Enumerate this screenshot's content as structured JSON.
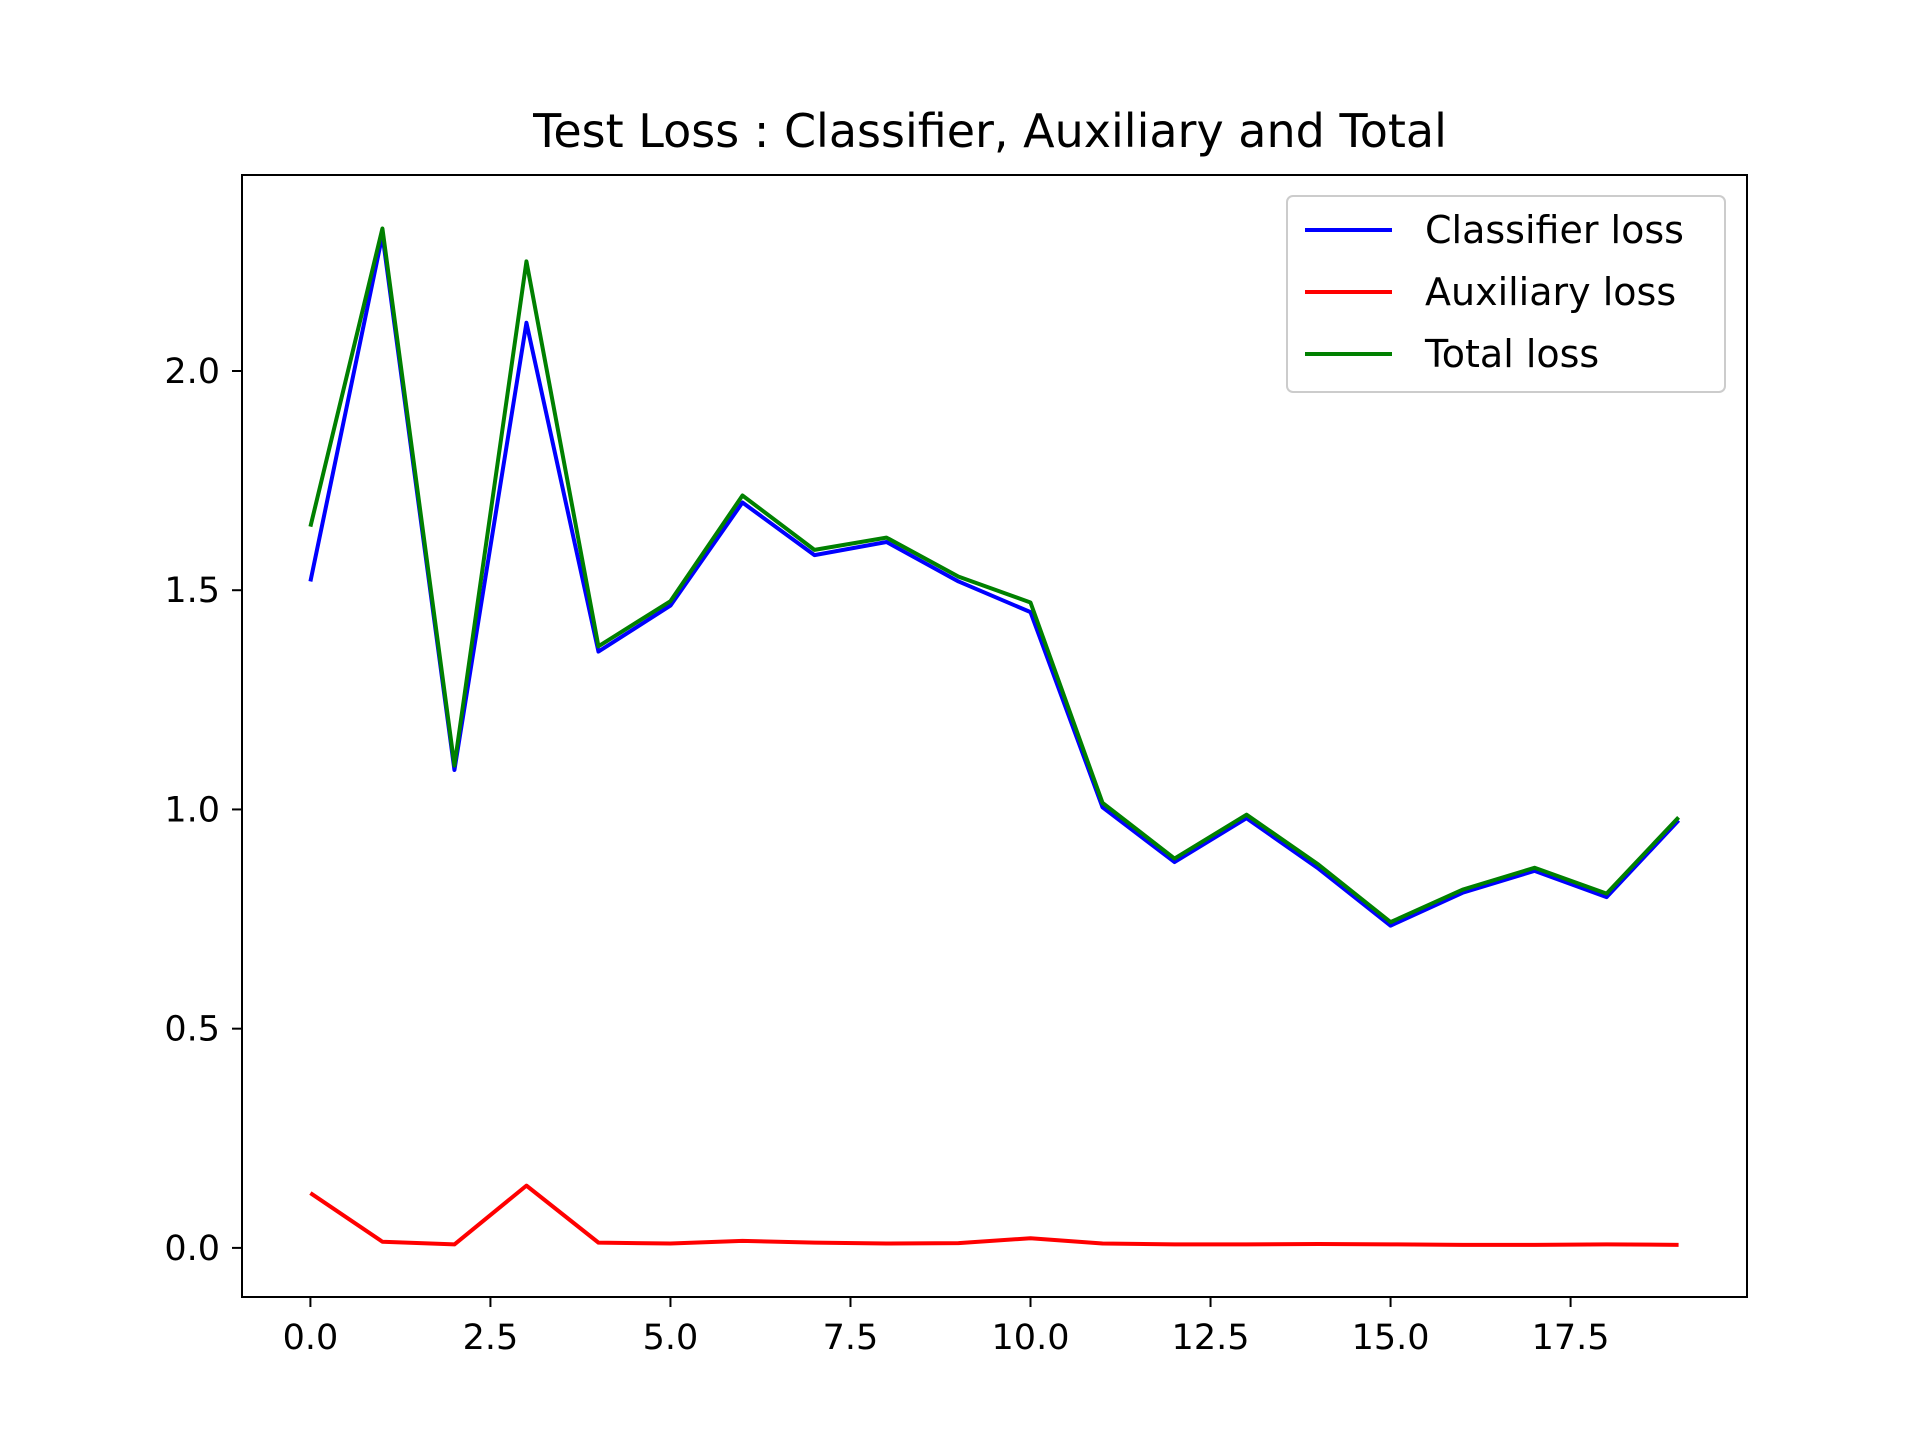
{
  "chart_data": {
    "type": "line",
    "title": "Test Loss : Classifier, Auxiliary and Total",
    "xlabel": "",
    "ylabel": "",
    "xlim": [
      -0.95,
      19.95
    ],
    "ylim": [
      -0.112,
      2.447
    ],
    "xticks": [
      0.0,
      2.5,
      5.0,
      7.5,
      10.0,
      12.5,
      15.0,
      17.5
    ],
    "xtick_labels": [
      "0.0",
      "2.5",
      "5.0",
      "7.5",
      "10.0",
      "12.5",
      "15.0",
      "17.5"
    ],
    "yticks": [
      0.0,
      0.5,
      1.0,
      1.5,
      2.0
    ],
    "ytick_labels": [
      "0.0",
      "0.5",
      "1.0",
      "1.5",
      "2.0"
    ],
    "grid": false,
    "legend_position": "upper right",
    "x": [
      0,
      1,
      2,
      3,
      4,
      5,
      6,
      7,
      8,
      9,
      10,
      11,
      12,
      13,
      14,
      15,
      16,
      17,
      18,
      19
    ],
    "series": [
      {
        "name": "Classifier loss",
        "color": "#0000ff",
        "values": [
          1.52,
          2.31,
          1.09,
          2.11,
          1.36,
          1.465,
          1.7,
          1.58,
          1.61,
          1.52,
          1.45,
          1.005,
          0.88,
          0.98,
          0.865,
          0.735,
          0.81,
          0.86,
          0.8,
          0.975
        ]
      },
      {
        "name": "Auxiliary loss",
        "color": "#ff0000",
        "values": [
          0.125,
          0.014,
          0.008,
          0.142,
          0.012,
          0.01,
          0.016,
          0.012,
          0.01,
          0.011,
          0.022,
          0.01,
          0.008,
          0.008,
          0.009,
          0.008,
          0.007,
          0.007,
          0.008,
          0.007
        ]
      },
      {
        "name": "Total loss",
        "color": "#008000",
        "values": [
          1.645,
          2.325,
          1.1,
          2.25,
          1.372,
          1.475,
          1.716,
          1.592,
          1.62,
          1.531,
          1.472,
          1.015,
          0.888,
          0.988,
          0.874,
          0.743,
          0.817,
          0.867,
          0.808,
          0.982
        ]
      }
    ]
  }
}
